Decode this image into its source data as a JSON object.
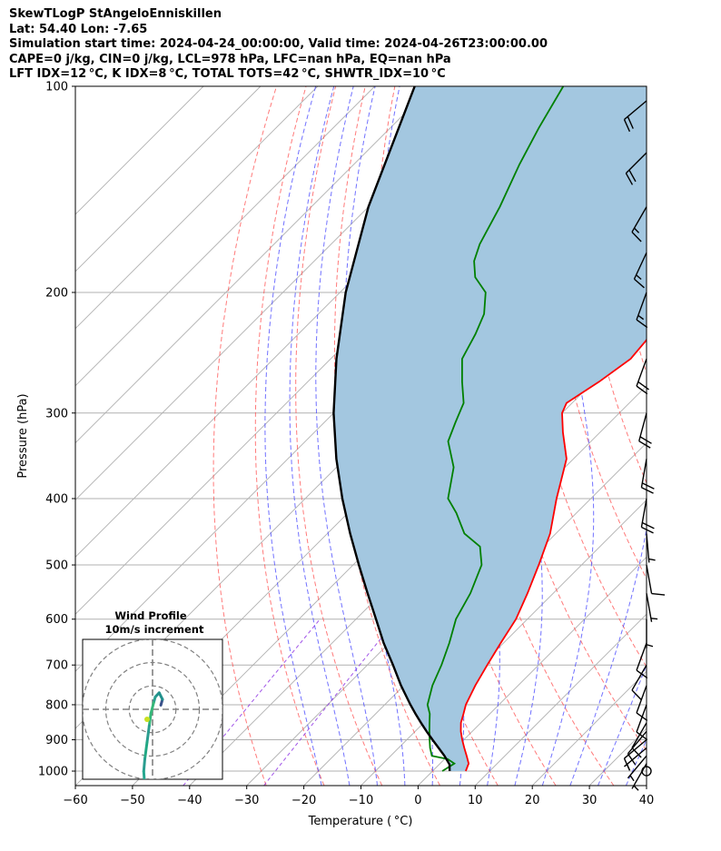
{
  "header": {
    "line1": "SkewTLogP StAngeloEnniskillen",
    "line2": "Lat: 54.40   Lon: -7.65",
    "line3": "Simulation start time: 2024-04-24_00:00:00, Valid time: 2024-04-26T23:00:00.00",
    "line4": "CAPE=0 j/kg, CIN=0 j/kg, LCL=978 hPa, LFC=nan hPa, EQ=nan hPa",
    "line5": "LFT IDX=12 °C, K IDX=8 °C, TOTAL TOTS=42 °C, SHWTR_IDX=10 °C"
  },
  "chart_data": {
    "type": "line",
    "title": "SkewTLogP StAngeloEnniskillen",
    "xlabel": "Temperature ( °C)",
    "ylabel": "Pressure (hPa)",
    "xlim": [
      -60,
      40
    ],
    "ylim": [
      1050,
      100
    ],
    "y_scale": "log",
    "skew": "45deg",
    "grid": true,
    "x_ticks": [
      "−60",
      "−50",
      "−40",
      "−30",
      "−20",
      "−10",
      "0",
      "10",
      "20",
      "30",
      "40"
    ],
    "y_ticks": [
      "100",
      "200",
      "300",
      "400",
      "500",
      "600",
      "700",
      "800",
      "900",
      "1000"
    ],
    "series": [
      {
        "role": "temperature",
        "color": "#ff0000",
        "points": [
          [
            5.8,
            1000
          ],
          [
            5.0,
            975
          ],
          [
            3.3,
            950
          ],
          [
            1.5,
            925
          ],
          [
            -0.3,
            900
          ],
          [
            -2,
            875
          ],
          [
            -3.5,
            850
          ],
          [
            -4.6,
            825
          ],
          [
            -5.8,
            800
          ],
          [
            -7.5,
            750
          ],
          [
            -9,
            700
          ],
          [
            -10.5,
            650
          ],
          [
            -12,
            600
          ],
          [
            -14.5,
            550
          ],
          [
            -17.5,
            500
          ],
          [
            -21,
            450
          ],
          [
            -26,
            400
          ],
          [
            -31.2,
            350
          ],
          [
            -36.5,
            320
          ],
          [
            -40,
            300
          ],
          [
            -41,
            290
          ],
          [
            -39,
            270
          ],
          [
            -37.5,
            250
          ],
          [
            -38,
            235
          ],
          [
            -39.5,
            220
          ],
          [
            -42,
            200
          ],
          [
            -42.5,
            190
          ],
          [
            -48,
            170
          ],
          [
            -54,
            150
          ],
          [
            -61,
            130
          ],
          [
            -66,
            115
          ],
          [
            -69.5,
            100
          ]
        ]
      },
      {
        "role": "dewpoint",
        "color": "#008000",
        "points": [
          [
            1.7,
            1000
          ],
          [
            2.5,
            975
          ],
          [
            0.5,
            960
          ],
          [
            -2.8,
            950
          ],
          [
            -4.5,
            925
          ],
          [
            -6,
            900
          ],
          [
            -7.5,
            875
          ],
          [
            -9,
            850
          ],
          [
            -10.5,
            825
          ],
          [
            -12.5,
            800
          ],
          [
            -15,
            750
          ],
          [
            -17,
            700
          ],
          [
            -19.5,
            650
          ],
          [
            -22.5,
            600
          ],
          [
            -24.5,
            550
          ],
          [
            -27.5,
            500
          ],
          [
            -31,
            470
          ],
          [
            -36,
            450
          ],
          [
            -41,
            420
          ],
          [
            -45,
            400
          ],
          [
            -49.5,
            360
          ],
          [
            -55,
            330
          ],
          [
            -57,
            310
          ],
          [
            -59,
            290
          ],
          [
            -63,
            270
          ],
          [
            -67,
            250
          ],
          [
            -69,
            230
          ],
          [
            -71,
            215
          ],
          [
            -74.5,
            200
          ],
          [
            -79,
            190
          ],
          [
            -82,
            180
          ],
          [
            -84,
            170
          ],
          [
            -87,
            150
          ],
          [
            -91,
            130
          ],
          [
            -94,
            115
          ],
          [
            -97,
            100
          ]
        ]
      },
      {
        "role": "parcel",
        "color": "#000000",
        "points": [
          [
            3.0,
            1000
          ],
          [
            1.8,
            978
          ],
          [
            -0.6,
            950
          ],
          [
            -3,
            925
          ],
          [
            -5.5,
            900
          ],
          [
            -8,
            875
          ],
          [
            -10.5,
            850
          ],
          [
            -13,
            825
          ],
          [
            -15.5,
            800
          ],
          [
            -20.5,
            750
          ],
          [
            -25.5,
            700
          ],
          [
            -31,
            650
          ],
          [
            -36.5,
            600
          ],
          [
            -42.5,
            550
          ],
          [
            -49,
            500
          ],
          [
            -56,
            450
          ],
          [
            -63.5,
            400
          ],
          [
            -71.5,
            350
          ],
          [
            -80,
            300
          ],
          [
            -89,
            250
          ],
          [
            -99,
            200
          ],
          [
            -110,
            150
          ],
          [
            -123,
            100
          ]
        ]
      }
    ],
    "shading": "region between temperature and parcel curves (#a3c7e0)",
    "background_lines": {
      "isotherms": "grey solid, every 10 °C",
      "dry_adiabats": "red dashed",
      "moist_adiabats": "blue dashed",
      "mixing_ratio": "purple dashed"
    },
    "wind_barbs": [
      {
        "p": 1000,
        "speed_kt": 0,
        "dir": 0
      },
      {
        "p": 975,
        "speed_kt": 5,
        "dir": 210
      },
      {
        "p": 950,
        "speed_kt": 5,
        "dir": 220
      },
      {
        "p": 925,
        "speed_kt": 5,
        "dir": 230
      },
      {
        "p": 900,
        "speed_kt": 10,
        "dir": 230
      },
      {
        "p": 875,
        "speed_kt": 10,
        "dir": 220
      },
      {
        "p": 850,
        "speed_kt": 10,
        "dir": 210
      },
      {
        "p": 800,
        "speed_kt": 10,
        "dir": 200
      },
      {
        "p": 750,
        "speed_kt": 10,
        "dir": 200
      },
      {
        "p": 700,
        "speed_kt": 10,
        "dir": 210
      },
      {
        "p": 650,
        "speed_kt": 10,
        "dir": 200
      },
      {
        "p": 600,
        "speed_kt": 5,
        "dir": 180
      },
      {
        "p": 550,
        "speed_kt": 5,
        "dir": 170
      },
      {
        "p": 500,
        "speed_kt": 10,
        "dir": 170
      },
      {
        "p": 450,
        "speed_kt": 5,
        "dir": 175
      },
      {
        "p": 400,
        "speed_kt": 20,
        "dir": 190
      },
      {
        "p": 350,
        "speed_kt": 20,
        "dir": 190
      },
      {
        "p": 300,
        "speed_kt": 20,
        "dir": 195
      },
      {
        "p": 250,
        "speed_kt": 20,
        "dir": 200
      },
      {
        "p": 200,
        "speed_kt": 15,
        "dir": 200
      },
      {
        "p": 175,
        "speed_kt": 15,
        "dir": 205
      },
      {
        "p": 150,
        "speed_kt": 15,
        "dir": 210
      },
      {
        "p": 125,
        "speed_kt": 20,
        "dir": 225
      },
      {
        "p": 105,
        "speed_kt": 20,
        "dir": 230
      }
    ],
    "inset": {
      "title": "Wind Profile",
      "subtitle": "10m/s increment",
      "rings_ms": [
        10,
        20,
        30
      ],
      "hodograph": [
        [
          1.5,
          0.5
        ],
        [
          1.8,
          1.2
        ],
        [
          1.2,
          2.0
        ],
        [
          0.5,
          1.5
        ],
        [
          0.2,
          0.8
        ],
        [
          -0.3,
          -0.5
        ],
        [
          -0.6,
          -2.0
        ],
        [
          -1.0,
          -4.0
        ],
        [
          -1.4,
          -6.0
        ],
        [
          -1.6,
          -7.5
        ],
        [
          -1.5,
          -8.4
        ]
      ]
    }
  }
}
